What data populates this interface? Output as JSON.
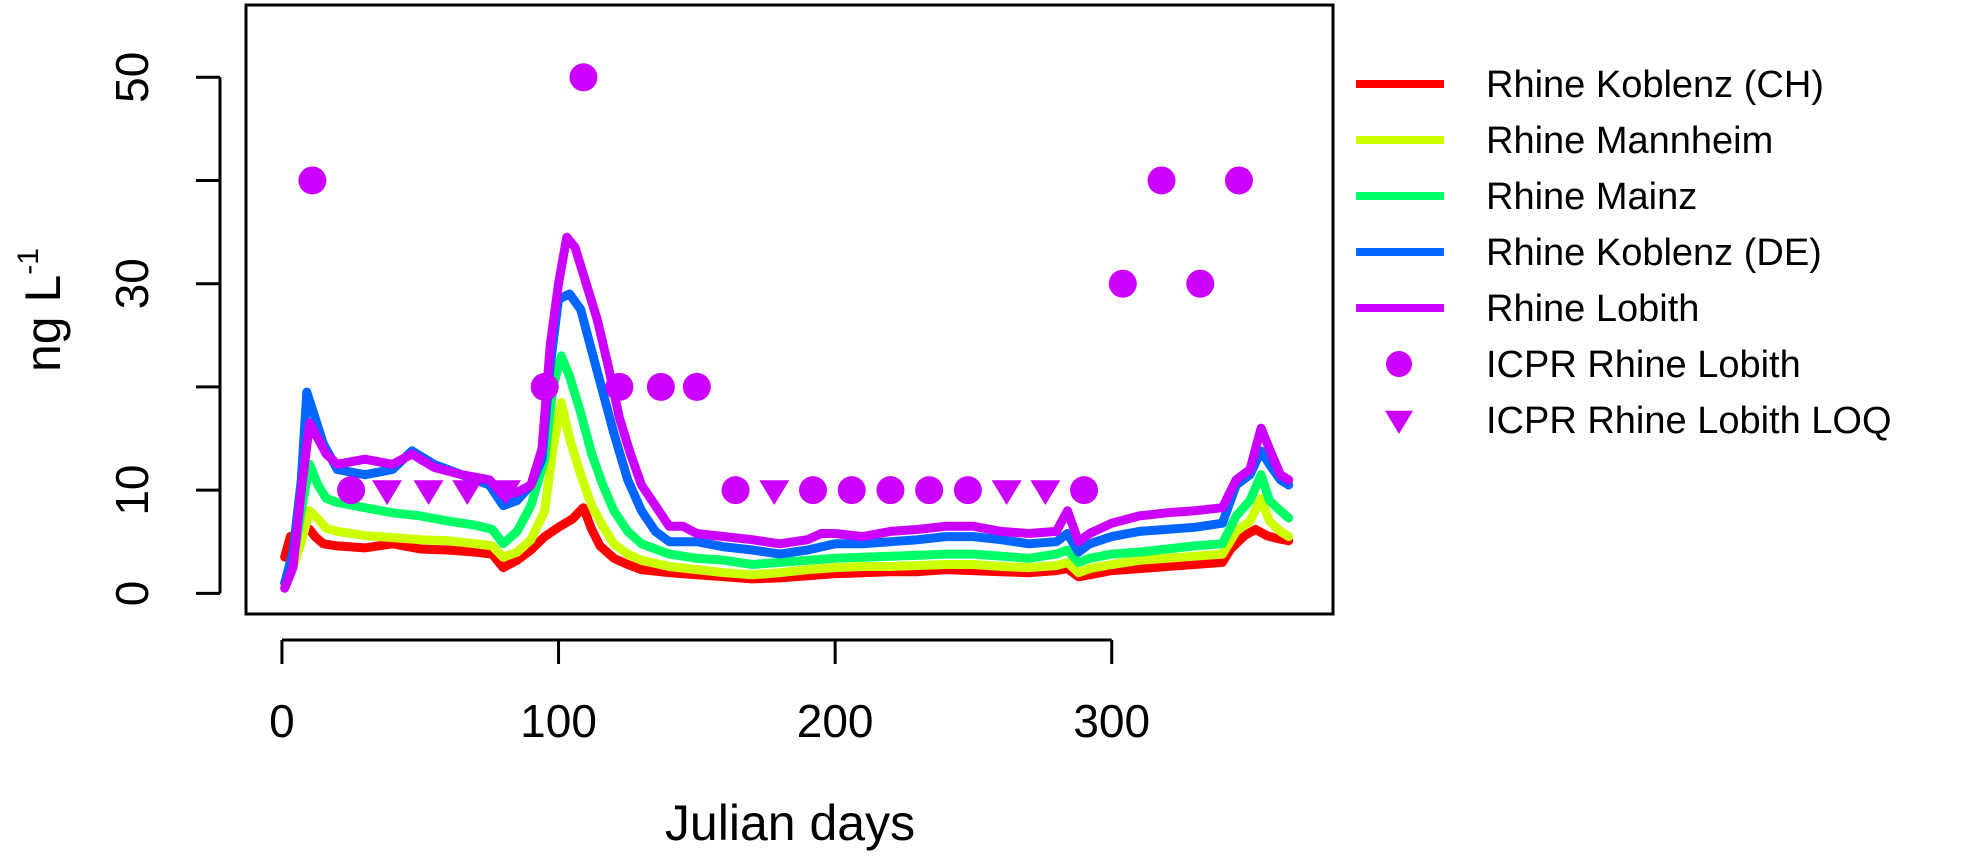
{
  "chart_data": {
    "type": "line",
    "xlabel": "Julian days",
    "ylabel": "ng L",
    "ylabel_sup": "-1",
    "xlim": [
      -13,
      380
    ],
    "ylim": [
      -2,
      57
    ],
    "x_ticks": [
      "0",
      "100",
      "200",
      "300"
    ],
    "x_tick_values": [
      0,
      100,
      200,
      300
    ],
    "y_ticks": [
      "0",
      "10",
      "30",
      "50"
    ],
    "y_tick_values": [
      0,
      10,
      30,
      50
    ],
    "y_tick_marks": [
      0,
      10,
      20,
      30,
      40,
      50
    ],
    "grid": false,
    "legend_position": "right-outside",
    "series": [
      {
        "name": "Rhine Koblenz (CH)",
        "color": "#ff0000",
        "points": [
          [
            1,
            3.5
          ],
          [
            3,
            5.5
          ],
          [
            6,
            5.8
          ],
          [
            10,
            6.2
          ],
          [
            12,
            5.5
          ],
          [
            15,
            4.8
          ],
          [
            20,
            4.6
          ],
          [
            30,
            4.4
          ],
          [
            40,
            4.8
          ],
          [
            50,
            4.3
          ],
          [
            60,
            4.2
          ],
          [
            70,
            4.0
          ],
          [
            76,
            3.8
          ],
          [
            80,
            2.5
          ],
          [
            85,
            3.2
          ],
          [
            90,
            4.2
          ],
          [
            95,
            5.5
          ],
          [
            100,
            6.4
          ],
          [
            105,
            7.2
          ],
          [
            109,
            8.3
          ],
          [
            112,
            6.2
          ],
          [
            115,
            4.6
          ],
          [
            120,
            3.4
          ],
          [
            125,
            2.8
          ],
          [
            130,
            2.3
          ],
          [
            140,
            2.0
          ],
          [
            150,
            1.8
          ],
          [
            160,
            1.6
          ],
          [
            170,
            1.4
          ],
          [
            180,
            1.5
          ],
          [
            190,
            1.7
          ],
          [
            200,
            1.9
          ],
          [
            210,
            2.0
          ],
          [
            220,
            2.1
          ],
          [
            230,
            2.1
          ],
          [
            240,
            2.3
          ],
          [
            250,
            2.2
          ],
          [
            260,
            2.1
          ],
          [
            270,
            2.0
          ],
          [
            280,
            2.2
          ],
          [
            284,
            2.4
          ],
          [
            288,
            1.6
          ],
          [
            292,
            1.8
          ],
          [
            300,
            2.2
          ],
          [
            310,
            2.4
          ],
          [
            320,
            2.6
          ],
          [
            330,
            2.8
          ],
          [
            340,
            3.0
          ],
          [
            343,
            4.3
          ],
          [
            348,
            5.6
          ],
          [
            352,
            6.2
          ],
          [
            356,
            5.6
          ],
          [
            360,
            5.3
          ],
          [
            364,
            5.1
          ]
        ]
      },
      {
        "name": "Rhine Mannheim",
        "color": "#ccff00",
        "points": [
          [
            1,
            1.0
          ],
          [
            4,
            2.5
          ],
          [
            7,
            5.0
          ],
          [
            10,
            8.0
          ],
          [
            13,
            7.2
          ],
          [
            16,
            6.3
          ],
          [
            20,
            6.0
          ],
          [
            30,
            5.6
          ],
          [
            40,
            5.4
          ],
          [
            50,
            5.2
          ],
          [
            60,
            5.1
          ],
          [
            70,
            4.8
          ],
          [
            76,
            4.6
          ],
          [
            80,
            3.5
          ],
          [
            85,
            4.0
          ],
          [
            90,
            5.2
          ],
          [
            95,
            8.0
          ],
          [
            98,
            14.0
          ],
          [
            101,
            18.5
          ],
          [
            104,
            15.0
          ],
          [
            108,
            11.5
          ],
          [
            112,
            8.5
          ],
          [
            116,
            6.5
          ],
          [
            120,
            4.8
          ],
          [
            125,
            3.8
          ],
          [
            130,
            3.2
          ],
          [
            140,
            2.6
          ],
          [
            150,
            2.3
          ],
          [
            160,
            2.0
          ],
          [
            170,
            1.8
          ],
          [
            180,
            2.0
          ],
          [
            190,
            2.3
          ],
          [
            200,
            2.5
          ],
          [
            210,
            2.6
          ],
          [
            220,
            2.6
          ],
          [
            230,
            2.7
          ],
          [
            240,
            2.8
          ],
          [
            250,
            2.8
          ],
          [
            260,
            2.6
          ],
          [
            270,
            2.5
          ],
          [
            280,
            2.7
          ],
          [
            284,
            3.0
          ],
          [
            288,
            2.0
          ],
          [
            292,
            2.4
          ],
          [
            300,
            2.8
          ],
          [
            310,
            3.2
          ],
          [
            320,
            3.4
          ],
          [
            330,
            3.6
          ],
          [
            340,
            3.8
          ],
          [
            345,
            6.0
          ],
          [
            350,
            7.0
          ],
          [
            354,
            9.2
          ],
          [
            357,
            7.0
          ],
          [
            361,
            6.0
          ],
          [
            364,
            5.5
          ]
        ]
      },
      {
        "name": "Rhine Mainz",
        "color": "#00ff66",
        "points": [
          [
            1,
            1.0
          ],
          [
            4,
            3.0
          ],
          [
            7,
            8.0
          ],
          [
            10,
            12.5
          ],
          [
            13,
            10.5
          ],
          [
            16,
            9.2
          ],
          [
            20,
            8.8
          ],
          [
            30,
            8.3
          ],
          [
            40,
            7.8
          ],
          [
            50,
            7.5
          ],
          [
            60,
            7.0
          ],
          [
            70,
            6.6
          ],
          [
            76,
            6.2
          ],
          [
            80,
            4.8
          ],
          [
            85,
            6.0
          ],
          [
            90,
            8.5
          ],
          [
            95,
            13.0
          ],
          [
            98,
            20.0
          ],
          [
            101,
            23.0
          ],
          [
            104,
            21.0
          ],
          [
            108,
            17.5
          ],
          [
            112,
            13.5
          ],
          [
            116,
            10.5
          ],
          [
            120,
            8.0
          ],
          [
            125,
            6.0
          ],
          [
            130,
            4.8
          ],
          [
            140,
            3.8
          ],
          [
            150,
            3.4
          ],
          [
            160,
            3.2
          ],
          [
            170,
            2.8
          ],
          [
            180,
            3.0
          ],
          [
            190,
            3.2
          ],
          [
            200,
            3.4
          ],
          [
            210,
            3.5
          ],
          [
            220,
            3.6
          ],
          [
            230,
            3.7
          ],
          [
            240,
            3.8
          ],
          [
            250,
            3.8
          ],
          [
            260,
            3.6
          ],
          [
            270,
            3.4
          ],
          [
            280,
            3.8
          ],
          [
            284,
            4.2
          ],
          [
            288,
            3.0
          ],
          [
            292,
            3.4
          ],
          [
            300,
            3.8
          ],
          [
            310,
            4.0
          ],
          [
            320,
            4.3
          ],
          [
            330,
            4.6
          ],
          [
            340,
            4.8
          ],
          [
            345,
            7.5
          ],
          [
            350,
            9.0
          ],
          [
            354,
            11.5
          ],
          [
            357,
            9.0
          ],
          [
            361,
            8.0
          ],
          [
            364,
            7.3
          ]
        ]
      },
      {
        "name": "Rhine Koblenz (DE)",
        "color": "#0066ff",
        "points": [
          [
            1,
            1.0
          ],
          [
            4,
            4.0
          ],
          [
            7,
            11.0
          ],
          [
            9,
            19.5
          ],
          [
            12,
            17.0
          ],
          [
            15,
            14.5
          ],
          [
            20,
            12.0
          ],
          [
            30,
            11.5
          ],
          [
            40,
            12.0
          ],
          [
            47,
            13.8
          ],
          [
            55,
            12.5
          ],
          [
            65,
            11.5
          ],
          [
            75,
            10.5
          ],
          [
            80,
            8.5
          ],
          [
            85,
            9.0
          ],
          [
            90,
            10.5
          ],
          [
            94,
            13.0
          ],
          [
            97,
            22.0
          ],
          [
            100,
            28.5
          ],
          [
            104,
            29.0
          ],
          [
            108,
            27.5
          ],
          [
            112,
            23.5
          ],
          [
            116,
            19.5
          ],
          [
            120,
            15.5
          ],
          [
            125,
            11.0
          ],
          [
            130,
            8.0
          ],
          [
            135,
            6.0
          ],
          [
            140,
            5.0
          ],
          [
            150,
            5.0
          ],
          [
            160,
            4.5
          ],
          [
            170,
            4.2
          ],
          [
            180,
            3.8
          ],
          [
            190,
            4.2
          ],
          [
            200,
            4.8
          ],
          [
            210,
            4.8
          ],
          [
            220,
            5.0
          ],
          [
            230,
            5.2
          ],
          [
            240,
            5.5
          ],
          [
            250,
            5.5
          ],
          [
            260,
            5.2
          ],
          [
            270,
            4.8
          ],
          [
            280,
            5.0
          ],
          [
            284,
            5.8
          ],
          [
            288,
            4.0
          ],
          [
            292,
            4.8
          ],
          [
            300,
            5.5
          ],
          [
            310,
            6.0
          ],
          [
            320,
            6.2
          ],
          [
            330,
            6.4
          ],
          [
            340,
            6.8
          ],
          [
            345,
            10.5
          ],
          [
            350,
            11.5
          ],
          [
            354,
            13.8
          ],
          [
            357,
            12.5
          ],
          [
            361,
            11.0
          ],
          [
            364,
            10.5
          ]
        ]
      },
      {
        "name": "Rhine Lobith",
        "color": "#cc00ff",
        "points": [
          [
            1,
            0.5
          ],
          [
            4,
            2.5
          ],
          [
            7,
            10.0
          ],
          [
            10,
            16.5
          ],
          [
            13,
            15.0
          ],
          [
            16,
            13.5
          ],
          [
            20,
            12.5
          ],
          [
            30,
            13.0
          ],
          [
            40,
            12.5
          ],
          [
            47,
            13.5
          ],
          [
            55,
            12.2
          ],
          [
            65,
            11.5
          ],
          [
            75,
            11.0
          ],
          [
            80,
            9.5
          ],
          [
            85,
            9.8
          ],
          [
            90,
            10.5
          ],
          [
            94,
            14.0
          ],
          [
            97,
            24.0
          ],
          [
            100,
            30.0
          ],
          [
            103,
            34.5
          ],
          [
            106,
            33.5
          ],
          [
            110,
            30.0
          ],
          [
            114,
            26.5
          ],
          [
            118,
            22.0
          ],
          [
            122,
            17.0
          ],
          [
            126,
            13.5
          ],
          [
            130,
            10.5
          ],
          [
            135,
            8.5
          ],
          [
            140,
            6.5
          ],
          [
            145,
            6.5
          ],
          [
            150,
            5.8
          ],
          [
            160,
            5.5
          ],
          [
            170,
            5.2
          ],
          [
            180,
            4.8
          ],
          [
            190,
            5.2
          ],
          [
            195,
            5.8
          ],
          [
            200,
            5.8
          ],
          [
            210,
            5.5
          ],
          [
            220,
            6.0
          ],
          [
            230,
            6.2
          ],
          [
            240,
            6.5
          ],
          [
            250,
            6.5
          ],
          [
            260,
            6.0
          ],
          [
            270,
            5.8
          ],
          [
            280,
            6.0
          ],
          [
            284,
            8.0
          ],
          [
            288,
            5.0
          ],
          [
            292,
            5.8
          ],
          [
            300,
            6.8
          ],
          [
            310,
            7.5
          ],
          [
            320,
            7.8
          ],
          [
            330,
            8.0
          ],
          [
            340,
            8.3
          ],
          [
            345,
            11.0
          ],
          [
            350,
            12.0
          ],
          [
            354,
            16.0
          ],
          [
            357,
            14.0
          ],
          [
            361,
            11.5
          ],
          [
            364,
            11.0
          ]
        ]
      }
    ],
    "point_series": [
      {
        "name": "ICPR Rhine Lobith",
        "color": "#cc00ff",
        "shape": "circle",
        "points": [
          [
            11,
            40
          ],
          [
            25,
            10
          ],
          [
            95,
            20
          ],
          [
            109,
            50
          ],
          [
            122,
            20
          ],
          [
            137,
            20
          ],
          [
            150,
            20
          ],
          [
            164,
            10
          ],
          [
            192,
            10
          ],
          [
            206,
            10
          ],
          [
            220,
            10
          ],
          [
            234,
            10
          ],
          [
            248,
            10
          ],
          [
            290,
            10
          ],
          [
            304,
            30
          ],
          [
            318,
            40
          ],
          [
            332,
            30
          ],
          [
            346,
            40
          ]
        ]
      },
      {
        "name": "ICPR Rhine Lobith LOQ",
        "color": "#cc00ff",
        "shape": "triangle-down",
        "points": [
          [
            38,
            10
          ],
          [
            53,
            10
          ],
          [
            67,
            10
          ],
          [
            81,
            10
          ],
          [
            178,
            10
          ],
          [
            262,
            10
          ],
          [
            276,
            10
          ]
        ]
      }
    ]
  }
}
